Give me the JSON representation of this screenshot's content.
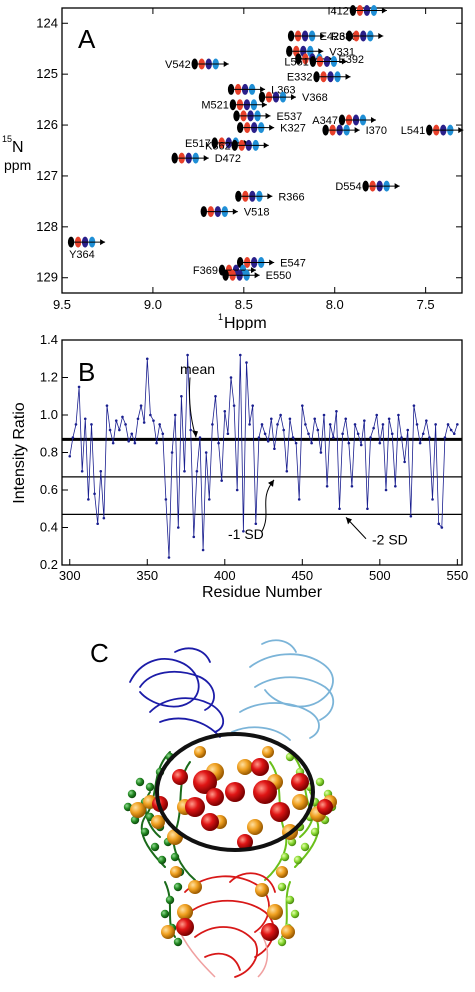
{
  "panels": {
    "a": {
      "letter": "A",
      "ylabel_main": "N",
      "ylabel_sup": "15",
      "ylabel_unit": "ppm",
      "xlabel_main": "Hppm",
      "xlabel_sup": "1"
    },
    "b": {
      "letter": "B"
    },
    "c": {
      "letter": "C"
    }
  },
  "chart_data": [
    {
      "type": "scatter",
      "panel": "A",
      "xlabel": "1Hppm",
      "ylabel": "15N ppm",
      "xlim": [
        9.5,
        7.3
      ],
      "ylim": [
        129.3,
        123.7
      ],
      "x_ticks": [
        9.5,
        9.0,
        8.5,
        8.0,
        7.5
      ],
      "y_ticks": [
        124,
        125,
        126,
        127,
        128,
        129
      ],
      "colors": [
        "#000000",
        "#e8402a",
        "#2a1f8a",
        "#1f8fd6"
      ],
      "peaks": [
        {
          "label": "I412",
          "x": 7.9,
          "y": 123.75
        },
        {
          "label": "R386",
          "x": 8.24,
          "y": 124.25
        },
        {
          "label": "E426",
          "x": 7.92,
          "y": 124.25
        },
        {
          "label": "V331",
          "x": 8.25,
          "y": 124.55
        },
        {
          "label": "V542",
          "x": 8.77,
          "y": 124.8
        },
        {
          "label": "E392",
          "x": 8.2,
          "y": 124.7
        },
        {
          "label": "L551",
          "x": 8.12,
          "y": 124.75
        },
        {
          "label": "L363",
          "x": 8.57,
          "y": 125.3
        },
        {
          "label": "E332",
          "x": 8.1,
          "y": 125.05
        },
        {
          "label": "V368",
          "x": 8.4,
          "y": 125.45
        },
        {
          "label": "M521",
          "x": 8.56,
          "y": 125.6
        },
        {
          "label": "E537",
          "x": 8.54,
          "y": 125.82
        },
        {
          "label": "A347",
          "x": 7.96,
          "y": 125.9
        },
        {
          "label": "K327",
          "x": 8.52,
          "y": 126.05
        },
        {
          "label": "L541",
          "x": 7.48,
          "y": 126.1
        },
        {
          "label": "I370",
          "x": 8.05,
          "y": 126.1
        },
        {
          "label": "E517",
          "x": 8.66,
          "y": 126.35
        },
        {
          "label": "D472",
          "x": 8.88,
          "y": 126.65
        },
        {
          "label": "K362",
          "x": 8.55,
          "y": 126.4
        },
        {
          "label": "R366",
          "x": 8.53,
          "y": 127.4
        },
        {
          "label": "D554",
          "x": 7.83,
          "y": 127.2
        },
        {
          "label": "V518",
          "x": 8.72,
          "y": 127.7
        },
        {
          "label": "Y364",
          "x": 9.45,
          "y": 128.3
        },
        {
          "label": "E547",
          "x": 8.52,
          "y": 128.7
        },
        {
          "label": "F369",
          "x": 8.62,
          "y": 128.85
        },
        {
          "label": "E550",
          "x": 8.6,
          "y": 128.95
        }
      ]
    },
    {
      "type": "line",
      "panel": "B",
      "xlabel": "Residue Number",
      "ylabel": "Intensity Ratio",
      "xlim": [
        295,
        553
      ],
      "ylim": [
        0.2,
        1.4
      ],
      "x_ticks": [
        300,
        350,
        400,
        450,
        500,
        550
      ],
      "y_ticks": [
        0.2,
        0.4,
        0.6,
        0.8,
        1.0,
        1.2,
        1.4
      ],
      "series_color": "#1a1f8f",
      "reference_lines": [
        {
          "label": "mean",
          "y": 0.87
        },
        {
          "label": "-1 SD",
          "y": 0.67
        },
        {
          "label": "-2 SD",
          "y": 0.47
        }
      ],
      "x": [
        300,
        302,
        304,
        306,
        308,
        310,
        312,
        314,
        316,
        318,
        320,
        322,
        324,
        326,
        328,
        330,
        332,
        334,
        336,
        338,
        340,
        342,
        344,
        346,
        348,
        350,
        352,
        354,
        356,
        358,
        360,
        362,
        364,
        366,
        368,
        370,
        372,
        374,
        376,
        378,
        380,
        382,
        384,
        386,
        388,
        390,
        392,
        394,
        396,
        398,
        400,
        402,
        404,
        406,
        408,
        410,
        412,
        414,
        416,
        418,
        420,
        422,
        424,
        426,
        428,
        430,
        432,
        434,
        436,
        438,
        440,
        442,
        444,
        446,
        448,
        450,
        452,
        454,
        456,
        458,
        460,
        462,
        464,
        466,
        468,
        470,
        472,
        474,
        476,
        478,
        480,
        482,
        484,
        486,
        488,
        490,
        492,
        494,
        496,
        498,
        500,
        502,
        504,
        506,
        508,
        510,
        512,
        514,
        516,
        518,
        520,
        522,
        524,
        526,
        528,
        530,
        532,
        534,
        536,
        538,
        540,
        542,
        544,
        546,
        548,
        550
      ],
      "y": [
        0.78,
        0.88,
        0.95,
        1.15,
        0.7,
        0.98,
        0.55,
        0.95,
        0.58,
        0.42,
        0.7,
        0.45,
        1.05,
        0.92,
        0.85,
        0.97,
        0.92,
        0.99,
        0.95,
        0.86,
        0.9,
        0.85,
        0.98,
        1.05,
        0.96,
        1.3,
        1.0,
        0.97,
        0.85,
        0.95,
        0.9,
        0.55,
        0.24,
        0.8,
        1.0,
        0.4,
        1.1,
        0.7,
        1.32,
        0.92,
        0.35,
        0.7,
        0.88,
        0.28,
        0.8,
        0.55,
        0.95,
        1.1,
        0.85,
        0.65,
        1.02,
        0.9,
        1.2,
        1.05,
        0.6,
        1.32,
        0.38,
        1.28,
        0.95,
        1.05,
        0.42,
        0.88,
        0.95,
        0.9,
        0.86,
        0.98,
        0.82,
        0.95,
        1.0,
        0.92,
        0.7,
        0.98,
        0.88,
        0.85,
        0.55,
        1.05,
        0.95,
        0.9,
        0.85,
        0.98,
        0.92,
        0.8,
        1.0,
        0.62,
        0.95,
        0.88,
        1.02,
        0.5,
        0.9,
        0.98,
        0.85,
        0.62,
        0.95,
        0.9,
        0.84,
        0.97,
        0.5,
        0.88,
        0.93,
        1.0,
        0.85,
        0.95,
        0.6,
        0.98,
        0.9,
        0.62,
        1.0,
        0.88,
        0.75,
        0.92,
        0.46,
        1.05,
        0.95,
        0.85,
        0.9,
        0.97,
        0.88,
        0.55,
        0.95,
        0.42,
        0.4,
        0.88,
        0.95,
        0.92,
        0.9,
        0.95
      ]
    }
  ]
}
